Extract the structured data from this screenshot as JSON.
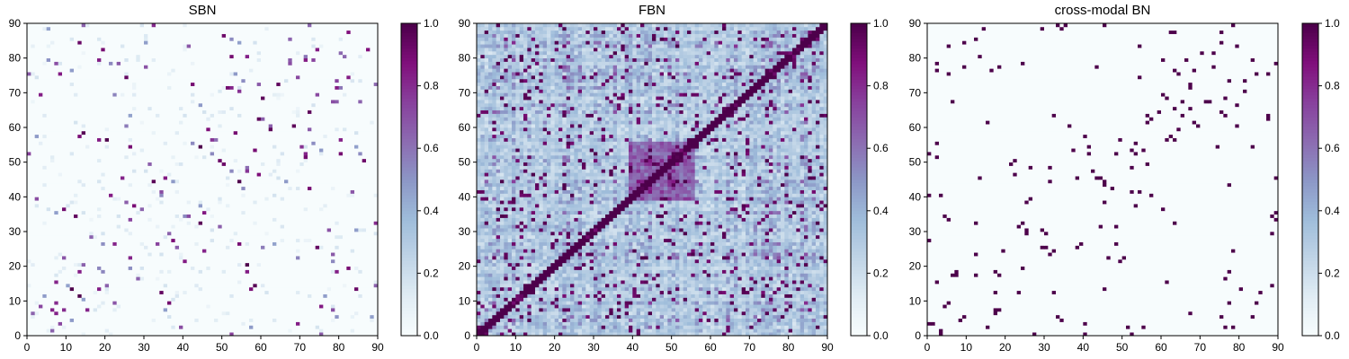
{
  "chart_data": [
    {
      "type": "heatmap",
      "title": "SBN",
      "xlim": [
        0,
        90
      ],
      "ylim": [
        0,
        90
      ],
      "xticks": [
        0,
        10,
        20,
        30,
        40,
        50,
        60,
        70,
        80,
        90
      ],
      "yticks": [
        0,
        10,
        20,
        30,
        40,
        50,
        60,
        70,
        80,
        90
      ],
      "grid": false,
      "matrix_size": 90,
      "pattern": "sparse",
      "symmetric": true,
      "seed": 11,
      "colorbar": {
        "range": [
          0.0,
          1.0
        ],
        "ticks": [
          "0.0",
          "0.2",
          "0.4",
          "0.6",
          "0.8",
          "1.0"
        ]
      }
    },
    {
      "type": "heatmap",
      "title": "FBN",
      "xlim": [
        0,
        90
      ],
      "ylim": [
        0,
        90
      ],
      "xticks": [
        0,
        10,
        20,
        30,
        40,
        50,
        60,
        70,
        80,
        90
      ],
      "yticks": [
        0,
        10,
        20,
        30,
        40,
        50,
        60,
        70,
        80,
        90
      ],
      "grid": false,
      "matrix_size": 90,
      "pattern": "dense",
      "symmetric": true,
      "seed": 23,
      "colorbar": {
        "range": [
          0.0,
          1.0
        ],
        "ticks": [
          "0.0",
          "0.2",
          "0.4",
          "0.6",
          "0.8",
          "1.0"
        ]
      }
    },
    {
      "type": "heatmap",
      "title": "cross-modal BN",
      "xlim": [
        0,
        90
      ],
      "ylim": [
        0,
        90
      ],
      "xticks": [
        0,
        10,
        20,
        30,
        40,
        50,
        60,
        70,
        80,
        90
      ],
      "yticks": [
        0,
        10,
        20,
        30,
        40,
        50,
        60,
        70,
        80,
        90
      ],
      "grid": false,
      "matrix_size": 90,
      "pattern": "binary",
      "symmetric": true,
      "seed": 37,
      "colorbar": {
        "range": [
          0.0,
          1.0
        ],
        "ticks": [
          "0.0",
          "0.2",
          "0.4",
          "0.6",
          "0.8",
          "1.0"
        ]
      }
    }
  ],
  "colormap": {
    "name": "BuPu",
    "stops": [
      "#f7fcfd",
      "#e0ecf4",
      "#bfd3e6",
      "#9ebcda",
      "#8c96c6",
      "#8c6bb1",
      "#88419d",
      "#810f7c",
      "#4d004b"
    ]
  }
}
